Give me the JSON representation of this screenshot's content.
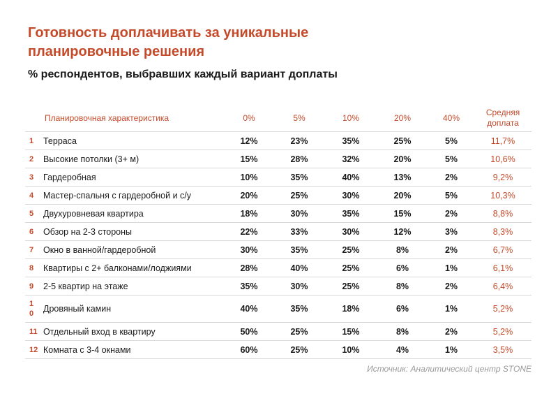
{
  "title": "Готовность доплачивать за уникальные планировочные решения",
  "subtitle": "% респондентов, выбравших каждый вариант доплаты",
  "table": {
    "headers": [
      "Планировочная характеристика",
      "0%",
      "5%",
      "10%",
      "20%",
      "40%",
      "Средняя доплата"
    ],
    "rows": [
      {
        "n": "1",
        "feature": "Терраса",
        "v": [
          "12%",
          "23%",
          "35%",
          "25%",
          "5%"
        ],
        "avg": "11,7%"
      },
      {
        "n": "2",
        "feature": "Высокие потолки (3+ м)",
        "v": [
          "15%",
          "28%",
          "32%",
          "20%",
          "5%"
        ],
        "avg": "10,6%"
      },
      {
        "n": "3",
        "feature": "Гардеробная",
        "v": [
          "10%",
          "35%",
          "40%",
          "13%",
          "2%"
        ],
        "avg": "9,2%"
      },
      {
        "n": "4",
        "feature": "Мастер-спальня с гардеробной и с/у",
        "v": [
          "20%",
          "25%",
          "30%",
          "20%",
          "5%"
        ],
        "avg": "10,3%"
      },
      {
        "n": "5",
        "feature": "Двухуровневая квартира",
        "v": [
          "18%",
          "30%",
          "35%",
          "15%",
          "2%"
        ],
        "avg": "8,8%"
      },
      {
        "n": "6",
        "feature": "Обзор на 2-3 стороны",
        "v": [
          "22%",
          "33%",
          "30%",
          "12%",
          "3%"
        ],
        "avg": "8,3%"
      },
      {
        "n": "7",
        "feature": "Окно в ванной/гардеробной",
        "v": [
          "30%",
          "35%",
          "25%",
          "8%",
          "2%"
        ],
        "avg": "6,7%"
      },
      {
        "n": "8",
        "feature": "Квартиры с 2+ балконами/лоджиями",
        "v": [
          "28%",
          "40%",
          "25%",
          "6%",
          "1%"
        ],
        "avg": "6,1%"
      },
      {
        "n": "9",
        "feature": "2-5 квартир на этаже",
        "v": [
          "35%",
          "30%",
          "25%",
          "8%",
          "2%"
        ],
        "avg": "6,4%"
      },
      {
        "n": "10",
        "feature": "Дровяный камин",
        "v": [
          "40%",
          "35%",
          "18%",
          "6%",
          "1%"
        ],
        "avg": "5,2%"
      },
      {
        "n": "11",
        "feature": "Отдельный вход в квартиру",
        "v": [
          "50%",
          "25%",
          "15%",
          "8%",
          "2%"
        ],
        "avg": "5,2%"
      },
      {
        "n": "12",
        "feature": "Комната с 3-4 окнами",
        "v": [
          "60%",
          "25%",
          "10%",
          "4%",
          "1%"
        ],
        "avg": "3,5%"
      }
    ]
  },
  "source": "Источник: Аналитический центр STONE",
  "colors": {
    "accent": "#c44a2a",
    "muted": "#9a9a9a"
  }
}
